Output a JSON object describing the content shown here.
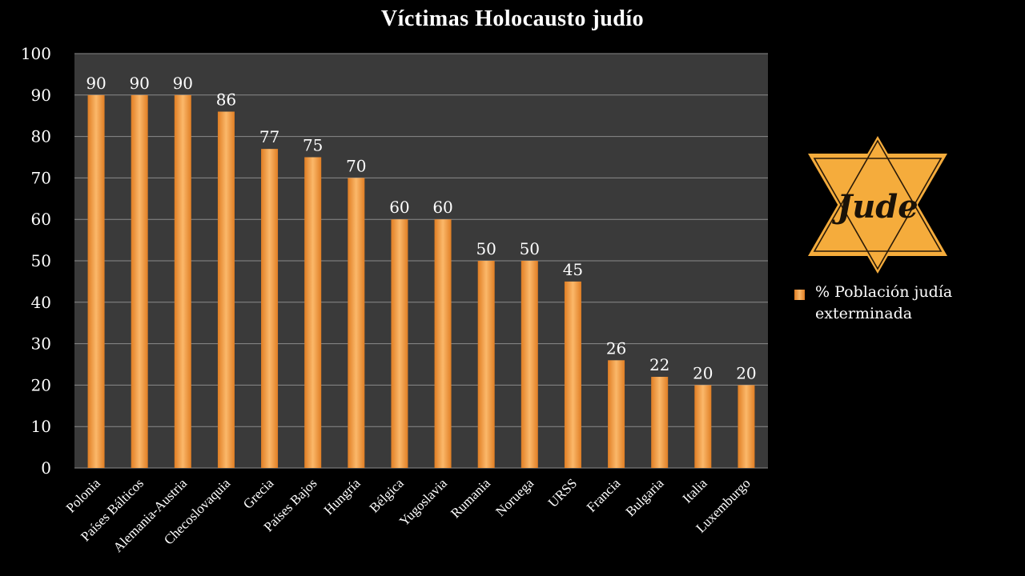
{
  "chart_data": {
    "type": "bar",
    "title": "Víctimas Holocausto judío",
    "categories": [
      "Polonia",
      "Países Bálticos",
      "Alemania-Austria",
      "Checoslovaquia",
      "Grecia",
      "Países Bajos",
      "Hungría",
      "Bélgica",
      "Yugoslavia",
      "Rumania",
      "Noruega",
      "URSS",
      "Francia",
      "Bulgaria",
      "Italia",
      "Luxemburgo"
    ],
    "series": [
      {
        "name": "% Población judía exterminada",
        "values": [
          90,
          90,
          90,
          86,
          77,
          75,
          70,
          60,
          60,
          50,
          50,
          45,
          26,
          22,
          20,
          20
        ]
      }
    ],
    "y_ticks": [
      "0",
      "10",
      "20",
      "30",
      "40",
      "50",
      "60",
      "70",
      "80",
      "90",
      "100"
    ],
    "ylim": [
      0,
      100
    ],
    "xlabel": "",
    "ylabel": "",
    "grid": true,
    "legend_position": "right",
    "data_labels": true,
    "colors": {
      "background": "#000000",
      "plot_area": "#3a3a3a",
      "gridline": "#8a8a8a",
      "bar_dark": "#e07e24",
      "bar_light": "#fbb86a",
      "text": "#ffffff",
      "star": "#f5ac3c"
    }
  },
  "badge": {
    "icon": "star-of-david-icon",
    "text": "Jude"
  }
}
